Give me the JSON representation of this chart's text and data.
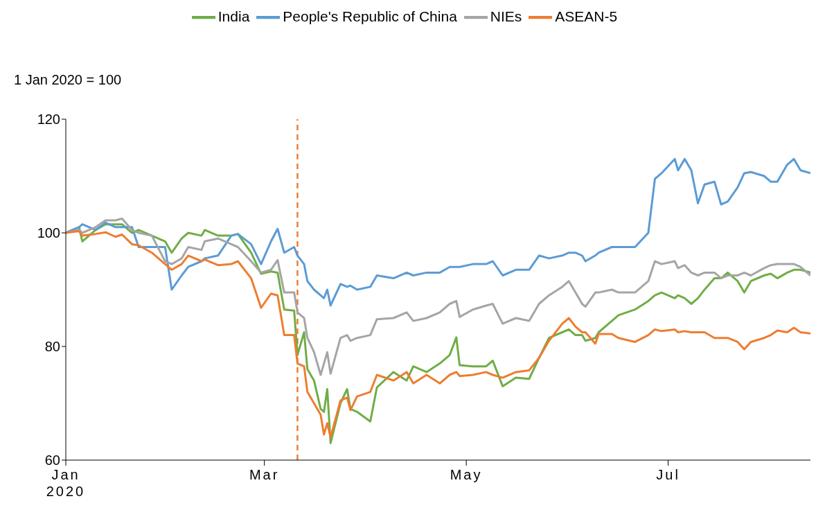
{
  "chart_data": {
    "type": "line",
    "ylabel": "1 Jan 2020 = 100",
    "x": [
      "2020-01-01",
      "2020-01-05",
      "2020-01-06",
      "2020-01-10",
      "2020-01-13",
      "2020-01-16",
      "2020-01-18",
      "2020-01-21",
      "2020-01-23",
      "2020-01-27",
      "2020-01-31",
      "2020-02-02",
      "2020-02-05",
      "2020-02-07",
      "2020-02-11",
      "2020-02-12",
      "2020-02-16",
      "2020-02-20",
      "2020-02-22",
      "2020-02-26",
      "2020-02-29",
      "2020-03-03",
      "2020-03-05",
      "2020-03-07",
      "2020-03-10",
      "2020-03-11",
      "2020-03-13",
      "2020-03-14",
      "2020-03-16",
      "2020-03-18",
      "2020-03-19",
      "2020-03-20",
      "2020-03-21",
      "2020-03-24",
      "2020-03-26",
      "2020-03-27",
      "2020-03-29",
      "2020-04-02",
      "2020-04-04",
      "2020-04-09",
      "2020-04-13",
      "2020-04-15",
      "2020-04-19",
      "2020-04-23",
      "2020-04-26",
      "2020-04-28",
      "2020-04-29",
      "2020-05-03",
      "2020-05-07",
      "2020-05-09",
      "2020-05-12",
      "2020-05-16",
      "2020-05-20",
      "2020-05-23",
      "2020-05-26",
      "2020-05-30",
      "2020-06-01",
      "2020-06-03",
      "2020-06-05",
      "2020-06-06",
      "2020-06-09",
      "2020-06-10",
      "2020-06-14",
      "2020-06-16",
      "2020-06-21",
      "2020-06-25",
      "2020-06-27",
      "2020-06-29",
      "2020-07-03",
      "2020-07-04",
      "2020-07-06",
      "2020-07-08",
      "2020-07-10",
      "2020-07-12",
      "2020-07-15",
      "2020-07-17",
      "2020-07-19",
      "2020-07-22",
      "2020-07-24",
      "2020-07-26",
      "2020-07-30",
      "2020-08-01",
      "2020-08-03",
      "2020-08-06",
      "2020-08-08",
      "2020-08-10",
      "2020-08-13"
    ],
    "series": [
      {
        "name": "India",
        "color": "#70ad47",
        "values": [
          100,
          101,
          98.5,
          100.5,
          101.5,
          101.5,
          101.5,
          100,
          100.5,
          99.5,
          98.5,
          96.5,
          99,
          100,
          99.5,
          100.5,
          99.5,
          99.5,
          99.8,
          96.5,
          92.8,
          93.2,
          93,
          86.5,
          86.3,
          78.5,
          82.5,
          76,
          74,
          69,
          68.5,
          72.5,
          63,
          70,
          72.5,
          69,
          68.5,
          66.8,
          72.8,
          75.5,
          74,
          76.5,
          75.5,
          77,
          78.5,
          81.6,
          76.7,
          76.5,
          76.5,
          77.5,
          73,
          74.5,
          74.3,
          78,
          81.5,
          82.5,
          83,
          82,
          82,
          81,
          81.5,
          82.5,
          84.5,
          85.5,
          86.5,
          88,
          89,
          89.5,
          88.5,
          89,
          88.5,
          87.5,
          88.5,
          90,
          92,
          92,
          93,
          91.5,
          89.5,
          91.5,
          92.5,
          92.8,
          92,
          93,
          93.5,
          93.5,
          93
        ]
      },
      {
        "name": "People's Republic of China",
        "color": "#5b9bd5",
        "values": [
          100,
          101,
          101.5,
          100.5,
          101.8,
          101,
          101,
          101,
          97.5,
          97.5,
          97.5,
          90,
          92.5,
          94,
          95,
          95.5,
          96,
          99.5,
          99.8,
          98,
          94.5,
          98.5,
          100.7,
          96.5,
          97.5,
          96,
          94.5,
          91.5,
          90,
          89,
          88.5,
          90,
          87.2,
          91,
          90.5,
          90.7,
          90,
          90.5,
          92.5,
          92,
          93,
          92.5,
          93,
          93,
          94,
          94,
          94,
          94.5,
          94.5,
          95,
          92.5,
          93.5,
          93.5,
          96,
          95.5,
          96,
          96.5,
          96.5,
          96,
          95,
          96,
          96.5,
          97.5,
          97.5,
          97.5,
          100,
          109.5,
          110.5,
          113,
          111,
          113,
          111,
          105.2,
          108.5,
          109,
          105,
          105.5,
          108,
          110.5,
          110.7,
          110,
          109,
          109,
          112,
          113,
          111,
          110.5
        ]
      },
      {
        "name": "NIEs",
        "color": "#a5a5a5",
        "values": [
          100,
          100.5,
          100,
          101,
          102.2,
          102.2,
          102.5,
          100.5,
          100,
          99.5,
          95,
          94.5,
          95.5,
          97.5,
          97,
          98.5,
          99,
          98,
          97.5,
          95,
          93,
          93.5,
          95.2,
          89.5,
          89.5,
          86,
          85,
          81.5,
          79,
          75,
          77,
          79,
          75.2,
          81.5,
          82,
          81,
          81.5,
          82,
          84.8,
          85,
          86,
          84.5,
          85,
          86,
          87.5,
          88,
          85.2,
          86.5,
          87.2,
          87.5,
          84,
          85,
          84.5,
          87.5,
          89,
          90.5,
          91.5,
          89.5,
          87.5,
          87,
          89.5,
          89.5,
          90,
          89.5,
          89.5,
          91.5,
          95,
          94.5,
          95,
          93.8,
          94.3,
          93,
          92.5,
          93,
          93,
          92,
          92.5,
          92.5,
          93,
          92.5,
          93.8,
          94.3,
          94.5,
          94.5,
          94.5,
          94,
          92.5
        ]
      },
      {
        "name": "ASEAN-5",
        "color": "#ed7d31",
        "values": [
          100,
          100.3,
          99.5,
          99.8,
          100.1,
          99.3,
          99.7,
          98,
          97.8,
          96.5,
          94.5,
          93.5,
          94.5,
          96,
          95,
          95.3,
          94.3,
          94.5,
          95,
          92,
          86.8,
          89.3,
          89,
          82,
          82,
          77,
          76.5,
          72,
          70,
          68,
          64.5,
          66.5,
          64,
          70.5,
          71,
          68.8,
          71.2,
          72,
          75,
          74,
          75.5,
          73.5,
          75,
          73.5,
          75,
          75.5,
          74.8,
          75,
          75.5,
          75,
          74.5,
          75.5,
          75.8,
          78,
          81,
          84,
          85,
          83.5,
          82.5,
          82.5,
          80.5,
          82.2,
          82.2,
          81.5,
          80.8,
          82,
          83,
          82.7,
          83,
          82.5,
          82.7,
          82.5,
          82.5,
          82.5,
          81.5,
          81.5,
          81.5,
          80.8,
          79.5,
          80.8,
          81.5,
          82,
          82.8,
          82.5,
          83.3,
          82.5,
          82.3
        ]
      }
    ],
    "xlim": [
      "2020-01-01",
      "2020-08-13"
    ],
    "xticks": [
      {
        "value": "2020-01-01",
        "label": "Jan 2020"
      },
      {
        "value": "2020-03-01",
        "label": "Mar"
      },
      {
        "value": "2020-05-01",
        "label": "May"
      },
      {
        "value": "2020-07-01",
        "label": "Jul"
      }
    ],
    "ylim": [
      60,
      120
    ],
    "yticks": [
      60,
      80,
      100,
      120
    ],
    "ref_lines": [
      {
        "axis": "x",
        "value": "2020-03-11",
        "color": "#ed7d31",
        "line_style": "dashed"
      }
    ],
    "grid": false,
    "legend": "top",
    "marker": "none",
    "line_style": "solid"
  }
}
